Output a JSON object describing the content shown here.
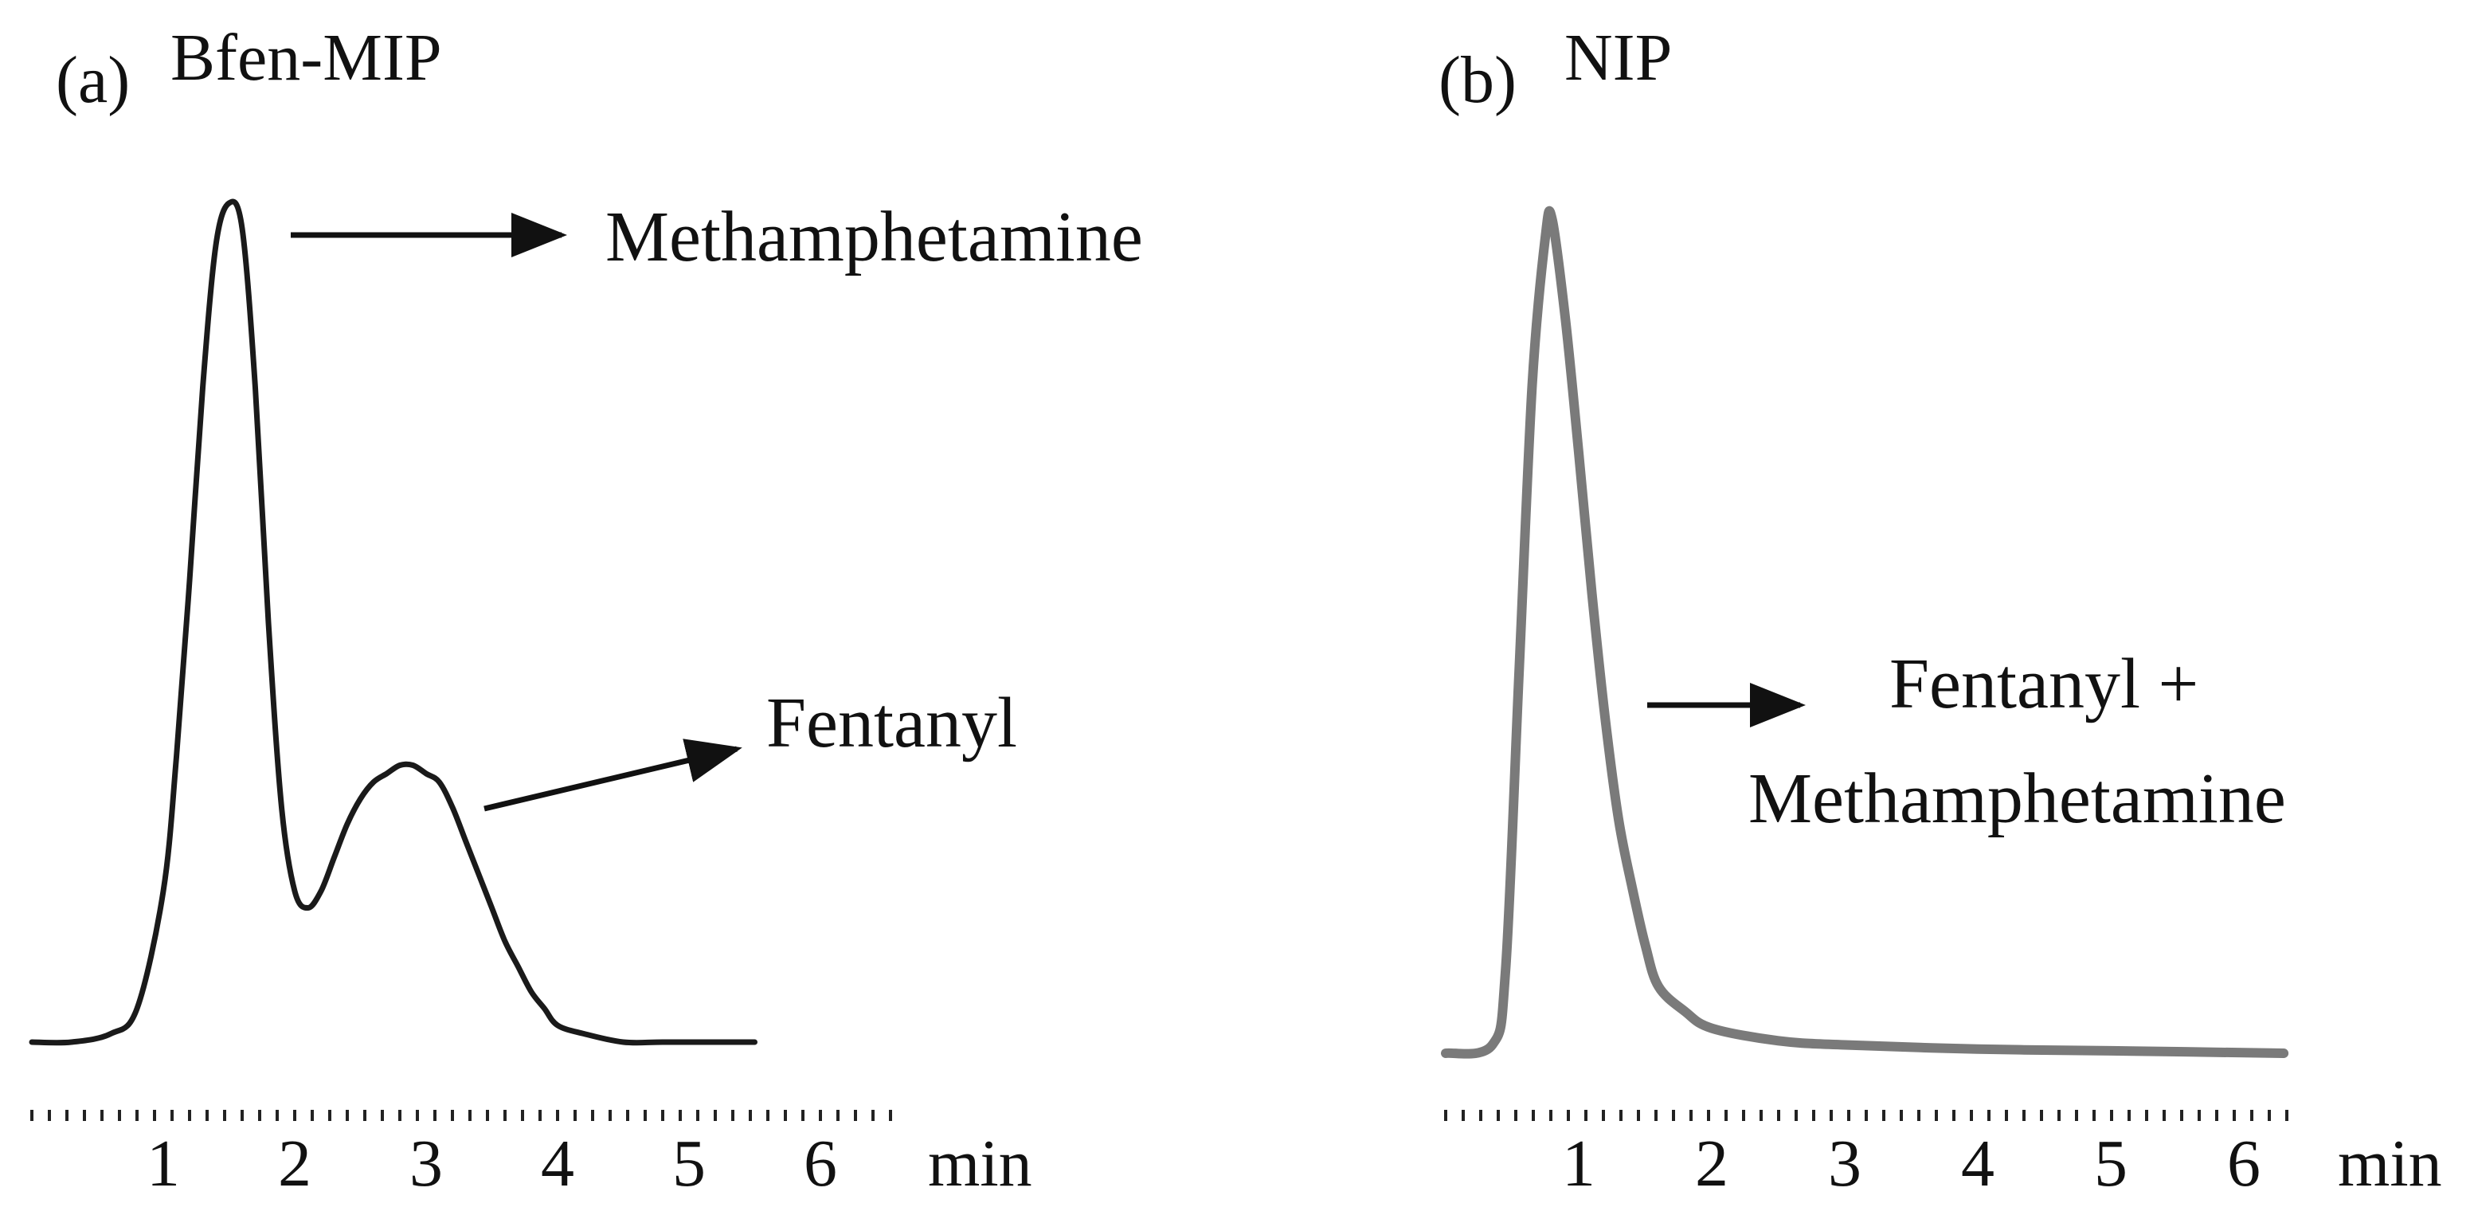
{
  "chart_data": [
    {
      "type": "line",
      "panel_label": "(a)",
      "title": "Bfen-MIP",
      "xlabel": "min",
      "x_ticks": [
        "1",
        "2",
        "3",
        "4",
        "5",
        "6"
      ],
      "xlim": [
        0,
        6.4
      ],
      "ylim": [
        0,
        1
      ],
      "series": [
        {
          "color": "#1a1a1a",
          "x": [
            0,
            0.3,
            0.6,
            0.8,
            1.0,
            1.1,
            1.2,
            1.3,
            1.4,
            1.5,
            1.6,
            1.7,
            1.8,
            1.9,
            2.0,
            2.1,
            2.2,
            2.3,
            2.4,
            2.5,
            2.6,
            2.7,
            2.8,
            2.9,
            3.0,
            3.1,
            3.2,
            3.3,
            3.4,
            3.5,
            3.6,
            3.7,
            3.8,
            3.9,
            4.0,
            4.2,
            4.5,
            4.8,
            5.2,
            5.5
          ],
          "y": [
            0.0,
            0.0,
            0.01,
            0.04,
            0.18,
            0.34,
            0.55,
            0.78,
            0.95,
            1.0,
            0.97,
            0.78,
            0.5,
            0.28,
            0.18,
            0.16,
            0.18,
            0.22,
            0.26,
            0.29,
            0.31,
            0.32,
            0.33,
            0.33,
            0.32,
            0.31,
            0.28,
            0.24,
            0.2,
            0.16,
            0.12,
            0.09,
            0.06,
            0.04,
            0.02,
            0.01,
            0.0,
            0.0,
            0.0,
            0.0
          ]
        }
      ],
      "annotations": [
        {
          "text": "Methamphetamine"
        },
        {
          "text": "Fentanyl"
        }
      ]
    },
    {
      "type": "line",
      "panel_label": "(b)",
      "title": "NIP",
      "xlabel": "min",
      "x_ticks": [
        "1",
        "2",
        "3",
        "4",
        "5",
        "6"
      ],
      "xlim": [
        0,
        6.5
      ],
      "ylim": [
        0,
        1
      ],
      "series": [
        {
          "color": "#7a7a7a",
          "x": [
            0,
            0.35,
            0.45,
            0.55,
            0.65,
            0.75,
            0.8,
            0.9,
            1.0,
            1.1,
            1.2,
            1.3,
            1.4,
            1.5,
            1.6,
            1.8,
            2.0,
            2.5,
            3.0,
            4.0,
            5.0,
            6.3
          ],
          "y": [
            0.0,
            0.01,
            0.1,
            0.45,
            0.8,
            0.98,
            1.0,
            0.88,
            0.72,
            0.55,
            0.4,
            0.28,
            0.2,
            0.13,
            0.08,
            0.05,
            0.03,
            0.015,
            0.01,
            0.005,
            0.003,
            0.0
          ]
        }
      ],
      "annotations": [
        {
          "text": "Fentanyl +"
        },
        {
          "text": "Methamphetamine"
        }
      ]
    }
  ]
}
